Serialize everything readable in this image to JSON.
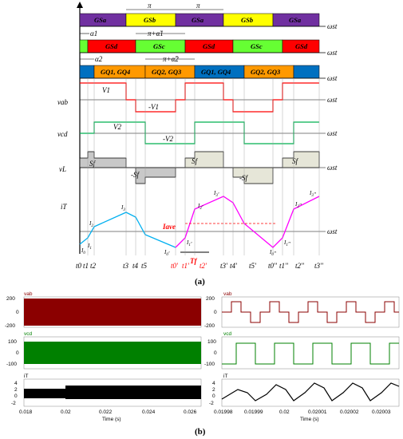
{
  "top": {
    "row1": [
      "GSa",
      "GSb",
      "GSa",
      "GSb",
      "GSa"
    ],
    "row2": [
      "GSd",
      "GSc",
      "GSd",
      "GSc",
      "GSd"
    ],
    "row3": [
      "GQ1, GQ4",
      "GQ2, GQ3",
      "GQ1, GQ4",
      "GQ2, GQ3"
    ],
    "pi": "π",
    "alpha1": "α1",
    "alpha2": "α2",
    "pi_alpha1": "π+α̃1",
    "pi_alpha2": "π+α̃2",
    "wst": "ωst",
    "vab": "vab",
    "vcd": "vcd",
    "vL": "vL",
    "iT": "iT",
    "V1": "V1",
    "mV1": "-V1",
    "V2": "V2",
    "mV2": "-V2",
    "Sf": "Sf",
    "mSf": "-Sf",
    "Iave": "Iave",
    "Tf": "Tf",
    "t_labels_black": [
      "t0",
      "t1",
      "t2",
      "t3",
      "t4",
      "t5"
    ],
    "t_labels_red": [
      "t0'",
      "t1'",
      "t2'"
    ],
    "t_labels_black2": [
      "t3'",
      "t4'",
      "t5'",
      "t0''",
      "t1''",
      "t2''",
      "t3''"
    ],
    "i_labels": [
      "I0",
      "I1",
      "I2",
      "I3",
      "I0'",
      "I1'",
      "I2'",
      "I3'",
      "I0''",
      "I1''",
      "I2''",
      "I3''"
    ],
    "caption": "(a)"
  },
  "bottom": {
    "caption": "(b)",
    "left_plots": [
      {
        "label": "vab",
        "ticks": [
          "200",
          "0",
          "-200"
        ],
        "color": "#8b0000"
      },
      {
        "label": "vcd",
        "ticks": [
          "100",
          "0",
          "-100"
        ],
        "color": "#008000"
      },
      {
        "label": "iT",
        "ticks": [
          "4",
          "2",
          "0",
          "-2"
        ],
        "color": "#000000"
      }
    ],
    "right_plots": [
      {
        "label": "vab",
        "ticks": [
          "200",
          "0",
          "-200"
        ],
        "color": "#8b0000"
      },
      {
        "label": "vcd",
        "ticks": [
          "100",
          "0",
          "-100"
        ],
        "color": "#008000"
      },
      {
        "label": "iT",
        "ticks": [
          "4",
          "2",
          "0",
          "-2"
        ],
        "color": "#000000"
      }
    ],
    "left_xticks": [
      "0.018",
      "0.02",
      "0.022",
      "0.024",
      "0.026"
    ],
    "right_xticks": [
      "0.01998",
      "0.01999",
      "0.02",
      "0.02001",
      "0.02002",
      "0.02003"
    ],
    "xlabel": "Time (s)"
  },
  "colors": {
    "purple": "#7030a0",
    "yellow": "#ffff00",
    "red": "#ff0000",
    "green": "#66ff33",
    "orange": "#ff9900",
    "blue": "#0070c0",
    "vab": "#ff0000",
    "vcd": "#00b050",
    "iT_blue": "#00b0f0",
    "iT_magenta": "#ff00ff"
  }
}
